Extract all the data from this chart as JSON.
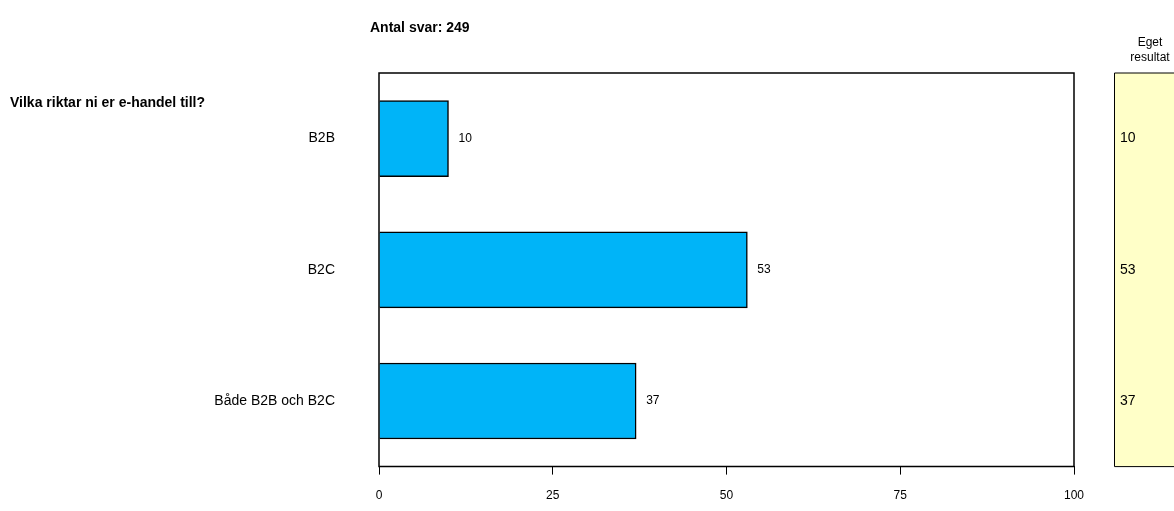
{
  "chart_data": {
    "type": "bar",
    "orientation": "horizontal",
    "title": "Antal svar: 249",
    "categories": [
      "B2B",
      "B2C",
      "Både B2B och B2C"
    ],
    "values": [
      10,
      53,
      37
    ],
    "color": "#00b4f8",
    "xlim": [
      0,
      100
    ],
    "xticks": [
      0,
      25,
      50,
      75,
      100
    ],
    "grid": false,
    "legend": false,
    "data_labels": true,
    "annotations": [
      "Vilka riktar ni er e-handel till?",
      "Eget resultat",
      "10",
      "53",
      "37"
    ]
  }
}
